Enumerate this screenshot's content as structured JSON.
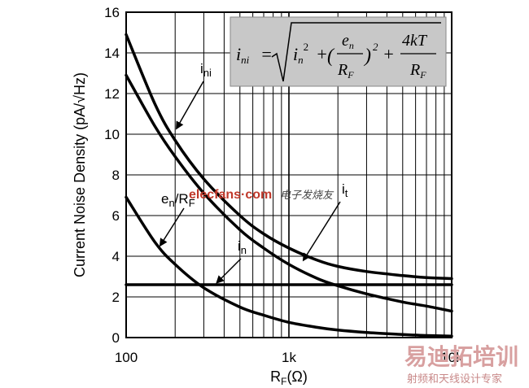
{
  "chart_data": {
    "type": "line",
    "xscale": "log",
    "xlim": [
      100,
      10000
    ],
    "ylim": [
      0,
      16
    ],
    "xlabel": "R",
    "xlabel_sub": "F",
    "xlabel_unit": "(Ω)",
    "ylabel": "Current Noise Density (pA/√Hz)",
    "x_ticks": [
      {
        "value": 100,
        "label": "100"
      },
      {
        "value": 1000,
        "label": "1k"
      },
      {
        "value": 10000,
        "label": "10k"
      }
    ],
    "y_ticks": [
      0,
      2,
      4,
      6,
      8,
      10,
      12,
      14,
      16
    ],
    "series": [
      {
        "name": "i_ni",
        "x": [
          100,
          150,
          200,
          300,
          500,
          700,
          1000,
          1500,
          2000,
          3000,
          5000,
          7000,
          10000
        ],
        "y": [
          14.9,
          11.5,
          9.7,
          7.8,
          6.0,
          5.1,
          4.4,
          3.8,
          3.5,
          3.25,
          3.05,
          2.95,
          2.9
        ]
      },
      {
        "name": "i_t",
        "x": [
          100,
          150,
          200,
          300,
          500,
          700,
          1000,
          1500,
          2000,
          3000,
          5000,
          7000,
          10000
        ],
        "y": [
          12.9,
          10.4,
          8.9,
          7.1,
          5.3,
          4.4,
          3.6,
          2.9,
          2.55,
          2.15,
          1.75,
          1.55,
          1.3
        ]
      },
      {
        "name": "e_n/R_F",
        "x": [
          100,
          150,
          200,
          300,
          500,
          700,
          1000,
          1500,
          2000,
          3000,
          5000,
          7000,
          10000
        ],
        "y": [
          6.9,
          4.7,
          3.6,
          2.45,
          1.5,
          1.1,
          0.75,
          0.5,
          0.37,
          0.25,
          0.15,
          0.1,
          0.07
        ]
      },
      {
        "name": "i_n",
        "x": [
          100,
          10000
        ],
        "y": [
          2.6,
          2.6
        ]
      }
    ],
    "annotations": {
      "i_ni": {
        "base": "i",
        "sub": "ni"
      },
      "e_n_RF": {
        "base": "e",
        "sub": "n",
        "rest": "/R",
        "sub2": "F"
      },
      "i_n": {
        "base": "i",
        "sub": "n"
      },
      "i_t": {
        "base": "i",
        "sub": "t"
      }
    },
    "formula": {
      "lhs": "i",
      "lhs_sub": "ni",
      "eq": "=",
      "t1": "i",
      "t1_sub": "n",
      "exp": "2",
      "plus": "+",
      "open": "(",
      "close": ")",
      "num1": "e",
      "num1_sub": "n",
      "den1": "R",
      "den1_sub": "F",
      "num2": "4kT",
      "den2": "R",
      "den2_sub": "F"
    }
  },
  "watermark": {
    "site": "elecfans·com",
    "site_cn": "电子发烧友",
    "brand": "易迪拓培训",
    "brand_sub": "射频和天线设计专家"
  }
}
